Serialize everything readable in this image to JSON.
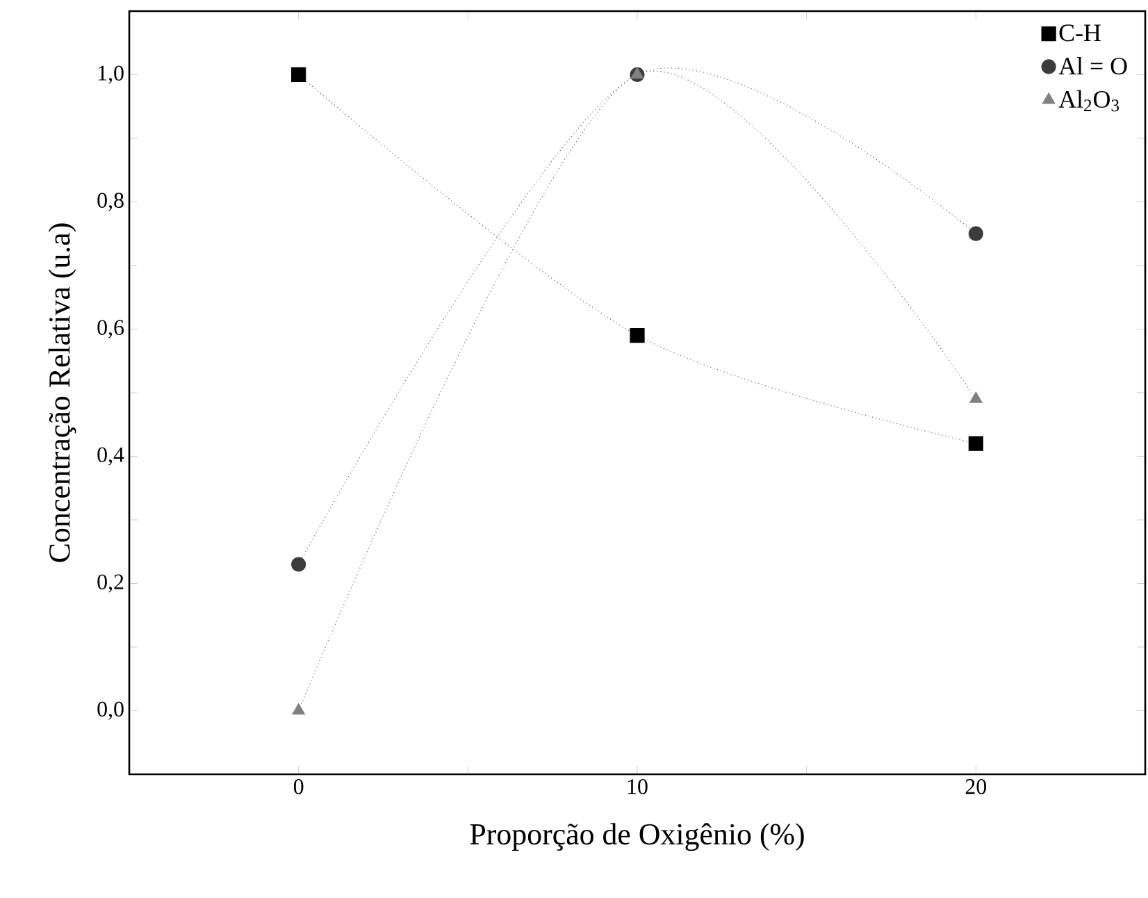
{
  "chart_data": {
    "type": "line",
    "xlabel": "Proporção de Oxigênio (%)",
    "ylabel": "Concentração  Relativa (u.a)",
    "x": [
      0,
      10,
      20
    ],
    "xlim": [
      -5,
      25
    ],
    "ylim": [
      -0.1,
      1.1
    ],
    "xticks": [
      0,
      {
        "value": 5,
        "label": null
      },
      10,
      {
        "value": 15,
        "label": null
      },
      20
    ],
    "yticks": [
      {
        "value": 0,
        "label": "0,0"
      },
      {
        "value": 0.1,
        "label": null
      },
      {
        "value": 0.2,
        "label": "0,2"
      },
      {
        "value": 0.3,
        "label": null
      },
      {
        "value": 0.4,
        "label": "0,4"
      },
      {
        "value": 0.5,
        "label": null
      },
      {
        "value": 0.6,
        "label": "0,6"
      },
      {
        "value": 0.7,
        "label": null
      },
      {
        "value": 0.8,
        "label": "0,8"
      },
      {
        "value": 0.9,
        "label": null
      },
      {
        "value": 1.0,
        "label": "1,0"
      }
    ],
    "series": [
      {
        "name": "C-H",
        "color": "#000000",
        "marker": "square",
        "values": [
          1.0,
          0.59,
          0.42
        ]
      },
      {
        "name": "Al = O",
        "color": "#3c3c3c",
        "marker": "circle",
        "values": [
          0.23,
          1.0,
          0.75
        ]
      },
      {
        "name": "Al$_{2}$O$_{3}$",
        "color": "#808080",
        "marker": "triangle",
        "values": [
          0.0,
          1.0,
          0.49
        ]
      }
    ],
    "line_style": "dotted",
    "legend": "top right",
    "grid": false
  }
}
